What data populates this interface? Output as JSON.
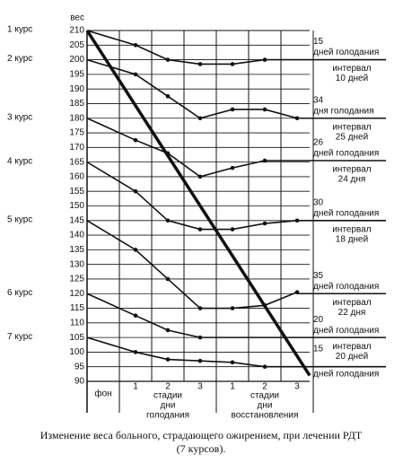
{
  "chart_data": {
    "type": "line",
    "y_label": "вес",
    "ylim": [
      90,
      210
    ],
    "yticks": [
      90,
      95,
      100,
      105,
      110,
      115,
      120,
      125,
      130,
      135,
      140,
      145,
      150,
      155,
      160,
      165,
      170,
      175,
      180,
      185,
      190,
      195,
      200,
      205,
      210
    ],
    "grid": true,
    "categories": [
      "фон",
      "1",
      "2",
      "3",
      "1",
      "2",
      "3"
    ],
    "groups": [
      {
        "label": [
          "стадии",
          "дни",
          "голодания"
        ]
      },
      {
        "label": [
          "стадии",
          "дни",
          "восстановления"
        ]
      }
    ],
    "color": "#111111",
    "trend": {
      "start": 210,
      "end": 92
    },
    "series": [
      {
        "name": "1 курс",
        "values": [
          210,
          205,
          200,
          198.5,
          198.5,
          200,
          null
        ],
        "level": 200,
        "days": "15",
        "days_text": "дней голодания",
        "interval": [
          "интервал",
          "10 дней"
        ]
      },
      {
        "name": "2 курс",
        "values": [
          200,
          195,
          187.5,
          180,
          183,
          183,
          180
        ],
        "level": 180,
        "days": "34",
        "days_text": "дня голодания",
        "interval": [
          "интервал",
          "25 дней"
        ]
      },
      {
        "name": "3 курс",
        "values": [
          180,
          172.5,
          168,
          160,
          163,
          165.5,
          null
        ],
        "level": 165.5,
        "days": "26",
        "days_text": "дней голодания",
        "interval": [
          "интервал",
          "24 дня"
        ]
      },
      {
        "name": "4 курс",
        "values": [
          165,
          155,
          145,
          142,
          142,
          144,
          145
        ],
        "level": 145,
        "days": "30",
        "days_text": "дней голодания",
        "interval": [
          "интервал",
          "18 дней"
        ]
      },
      {
        "name": "5 курс",
        "values": [
          145,
          135,
          125,
          115,
          115,
          116,
          120.5
        ],
        "level": 120,
        "days": "35",
        "days_text": "дней голодания",
        "interval": [
          "интервал",
          "22 дня"
        ]
      },
      {
        "name": "6 курс",
        "values": [
          120,
          112.5,
          107.5,
          105,
          null,
          null,
          null
        ],
        "level": 105,
        "days": "20",
        "days_text": "дней голодания",
        "interval": [
          "интервал",
          "20 дней"
        ]
      },
      {
        "name": "7 курс",
        "values": [
          105,
          100,
          97.5,
          97,
          96.5,
          95,
          null
        ],
        "level": 95,
        "days": "15",
        "days_text": "дней голодания",
        "interval": null
      }
    ],
    "caption": [
      "Изменение веса больного, страдающего ожирением, при лечении РДТ",
      "(7 курсов)."
    ]
  }
}
